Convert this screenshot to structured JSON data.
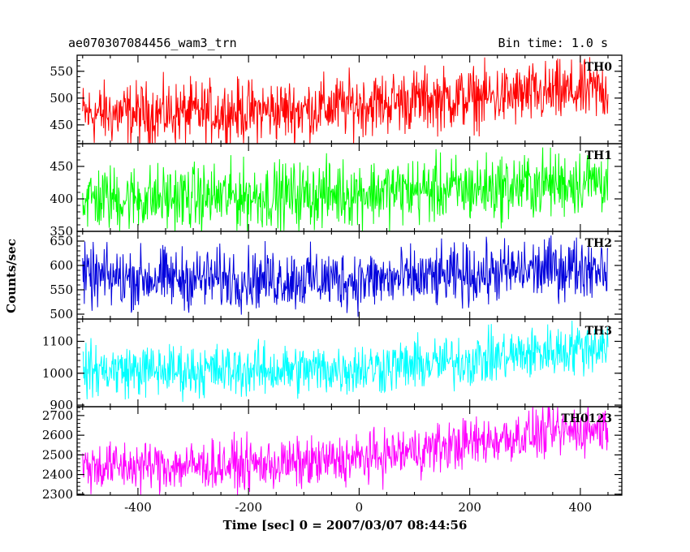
{
  "header": {
    "title": "ae070307084456_wam3_trn",
    "bin_time": "Bin time: 1.0 s"
  },
  "chart_data": {
    "type": "line",
    "xlabel": "Time [sec] 0 = 2007/03/07 08:44:56",
    "ylabel": "Counts/sec",
    "xlim": [
      -510,
      475
    ],
    "x_ticks": [
      -400,
      -200,
      0,
      200,
      400
    ],
    "x_range": [
      -500,
      450
    ],
    "bin_time": 1.0,
    "grid": false,
    "panels": [
      {
        "name": "TH0",
        "color": "#ff0000",
        "ylim": [
          415,
          580
        ],
        "y_ticks": [
          450,
          500,
          550
        ],
        "trend": [
          [
            -500,
            470
          ],
          [
            -300,
            472
          ],
          [
            -100,
            478
          ],
          [
            0,
            488
          ],
          [
            100,
            496
          ],
          [
            200,
            500
          ],
          [
            300,
            505
          ],
          [
            450,
            515
          ]
        ],
        "noise_amplitude": 32
      },
      {
        "name": "TH1",
        "color": "#00ff00",
        "ylim": [
          350,
          485
        ],
        "y_ticks": [
          350,
          400,
          450
        ],
        "trend": [
          [
            -500,
            400
          ],
          [
            -300,
            402
          ],
          [
            -100,
            406
          ],
          [
            0,
            410
          ],
          [
            100,
            413
          ],
          [
            200,
            415
          ],
          [
            300,
            420
          ],
          [
            450,
            430
          ]
        ],
        "noise_amplitude": 28
      },
      {
        "name": "TH2",
        "color": "#0000dd",
        "ylim": [
          490,
          670
        ],
        "y_ticks": [
          500,
          550,
          600,
          650
        ],
        "trend": [
          [
            -500,
            575
          ],
          [
            -300,
            573
          ],
          [
            -100,
            572
          ],
          [
            0,
            570
          ],
          [
            100,
            572
          ],
          [
            200,
            580
          ],
          [
            300,
            590
          ],
          [
            450,
            600
          ]
        ],
        "noise_amplitude": 34
      },
      {
        "name": "TH3",
        "color": "#00ffff",
        "ylim": [
          895,
          1170
        ],
        "y_ticks": [
          900,
          1000,
          1100
        ],
        "trend": [
          [
            -500,
            1010
          ],
          [
            -300,
            1008
          ],
          [
            -100,
            1010
          ],
          [
            0,
            1015
          ],
          [
            100,
            1025
          ],
          [
            200,
            1040
          ],
          [
            300,
            1060
          ],
          [
            450,
            1090
          ]
        ],
        "noise_amplitude": 45
      },
      {
        "name": "TH0123",
        "color": "#ff00ff",
        "ylim": [
          2295,
          2745
        ],
        "y_ticks": [
          2300,
          2400,
          2500,
          2600,
          2700
        ],
        "trend": [
          [
            -500,
            2440
          ],
          [
            -300,
            2445
          ],
          [
            -100,
            2455
          ],
          [
            0,
            2480
          ],
          [
            100,
            2520
          ],
          [
            200,
            2560
          ],
          [
            300,
            2600
          ],
          [
            450,
            2640
          ]
        ],
        "noise_amplitude": 70
      }
    ]
  }
}
